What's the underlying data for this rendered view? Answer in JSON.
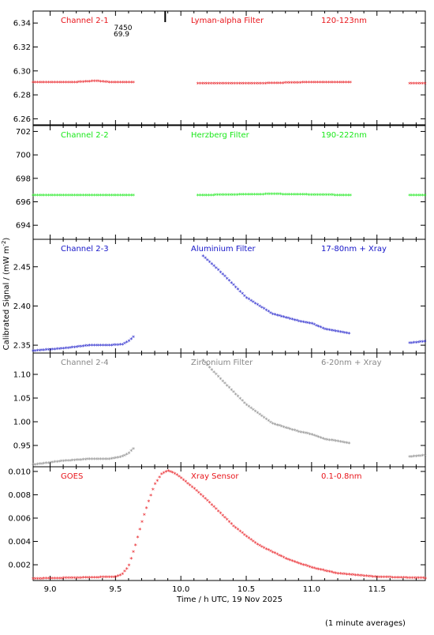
{
  "figure": {
    "xlabel": "Time / h UTC, 19 Nov 2025",
    "ylabel": "Calibrated Signal / (mW m",
    "ylabel_sup": "-2",
    "ylabel_close": ")",
    "footnote": "(1 minute averages)",
    "marker_text_top": "7450",
    "marker_text_bottom": "69.9",
    "marker_time": 9.88
  },
  "chart_data": [
    {
      "type": "scatter",
      "channel": "Channel 2-1",
      "filter": "Lyman-alpha Filter",
      "band": "120-123nm",
      "color": "#e8141a",
      "xlim": [
        8.87,
        11.87
      ],
      "ylim": [
        6.255,
        6.35
      ],
      "yticks": [
        "6.26",
        "6.28",
        "6.30",
        "6.32",
        "6.34"
      ],
      "ytick_values": [
        6.26,
        6.28,
        6.3,
        6.32,
        6.34
      ],
      "segments": [
        {
          "x": [
            8.87,
            9.2,
            9.35,
            9.45,
            9.65
          ],
          "y": [
            6.29,
            6.29,
            6.291,
            6.29,
            6.29
          ]
        },
        {
          "x": [
            10.13,
            10.6,
            11.0,
            11.3
          ],
          "y": [
            6.289,
            6.289,
            6.29,
            6.29
          ]
        },
        {
          "x": [
            11.75,
            11.87
          ],
          "y": [
            6.289,
            6.289
          ]
        }
      ]
    },
    {
      "type": "scatter",
      "channel": "Channel 2-2",
      "filter": "Herzberg Filter",
      "band": "190-222nm",
      "color": "#18e818",
      "xlim": [
        8.87,
        11.87
      ],
      "ylim": [
        692.8,
        702.5
      ],
      "yticks": [
        "694",
        "696",
        "698",
        "700",
        "702"
      ],
      "ytick_values": [
        694,
        696,
        698,
        700,
        702
      ],
      "segments": [
        {
          "x": [
            8.87,
            9.05,
            9.3,
            9.65
          ],
          "y": [
            696.5,
            696.5,
            696.5,
            696.5
          ]
        },
        {
          "x": [
            10.13,
            10.7,
            11.3
          ],
          "y": [
            696.5,
            696.6,
            696.5
          ]
        },
        {
          "x": [
            11.75,
            11.87
          ],
          "y": [
            696.5,
            696.5
          ]
        }
      ]
    },
    {
      "type": "scatter",
      "channel": "Channel 2-3",
      "filter": "Aluminium Filter",
      "band": "17-80nm + Xray",
      "color": "#1414c8",
      "xlim": [
        8.87,
        11.87
      ],
      "ylim": [
        2.34,
        2.485
      ],
      "yticks": [
        "2.35",
        "2.40",
        "2.45"
      ],
      "ytick_values": [
        2.35,
        2.4,
        2.45
      ],
      "segments": [
        {
          "x": [
            8.87,
            9.1,
            9.3,
            9.45,
            9.55,
            9.6,
            9.65
          ],
          "y": [
            2.342,
            2.345,
            2.349,
            2.349,
            2.35,
            2.354,
            2.362
          ]
        },
        {
          "x": [
            10.17,
            10.3,
            10.5,
            10.7,
            10.9,
            11.0,
            11.1,
            11.3
          ],
          "y": [
            2.463,
            2.443,
            2.41,
            2.389,
            2.38,
            2.377,
            2.37,
            2.364
          ]
        },
        {
          "x": [
            11.75,
            11.87
          ],
          "y": [
            2.352,
            2.354
          ]
        }
      ]
    },
    {
      "type": "scatter",
      "channel": "Channel 2-4",
      "filter": "Zirconium Filter",
      "band": "6-20nm + Xray",
      "color": "#888888",
      "xlim": [
        8.87,
        11.87
      ],
      "ylim": [
        0.905,
        1.145
      ],
      "yticks": [
        "0.95",
        "1.00",
        "1.05",
        "1.10"
      ],
      "ytick_values": [
        0.95,
        1.0,
        1.05,
        1.1
      ],
      "segments": [
        {
          "x": [
            8.87,
            9.1,
            9.3,
            9.45,
            9.55,
            9.6,
            9.65
          ],
          "y": [
            0.908,
            0.916,
            0.92,
            0.92,
            0.925,
            0.932,
            0.945
          ]
        },
        {
          "x": [
            10.17,
            10.3,
            10.5,
            10.7,
            10.9,
            11.0,
            11.1,
            11.3
          ],
          "y": [
            1.128,
            1.09,
            1.035,
            0.995,
            0.978,
            0.972,
            0.962,
            0.953
          ]
        },
        {
          "x": [
            11.75,
            11.87
          ],
          "y": [
            0.925,
            0.928
          ]
        }
      ]
    },
    {
      "type": "scatter",
      "channel": "GOES",
      "filter": "Xray Sensor",
      "band": "0.1-0.8nm",
      "color": "#e8141a",
      "xlim": [
        8.87,
        11.87
      ],
      "ylim": [
        0.00065,
        0.0104
      ],
      "yticks": [
        "0.002",
        "0.004",
        "0.006",
        "0.008",
        "0.010"
      ],
      "ytick_values": [
        0.002,
        0.004,
        0.006,
        0.008,
        0.01
      ],
      "xticks": [
        "9.0",
        "9.5",
        "10.0",
        "10.5",
        "11.0",
        "11.5"
      ],
      "xtick_values": [
        9.0,
        9.5,
        10.0,
        10.5,
        11.0,
        11.5
      ],
      "segments": [
        {
          "x": [
            8.87,
            9.3,
            9.5,
            9.55,
            9.6,
            9.65,
            9.7,
            9.75,
            9.8,
            9.85,
            9.9,
            9.95,
            10.0,
            10.1,
            10.2,
            10.3,
            10.4,
            10.5,
            10.6,
            10.8,
            11.0,
            11.2,
            11.5,
            11.87
          ],
          "y": [
            0.00075,
            0.00085,
            0.0009,
            0.0011,
            0.0018,
            0.0035,
            0.0055,
            0.0073,
            0.0088,
            0.0097,
            0.01,
            0.0098,
            0.0094,
            0.0085,
            0.0075,
            0.0064,
            0.0053,
            0.0044,
            0.0036,
            0.0025,
            0.0017,
            0.0012,
            0.0009,
            0.0008
          ]
        }
      ]
    }
  ]
}
